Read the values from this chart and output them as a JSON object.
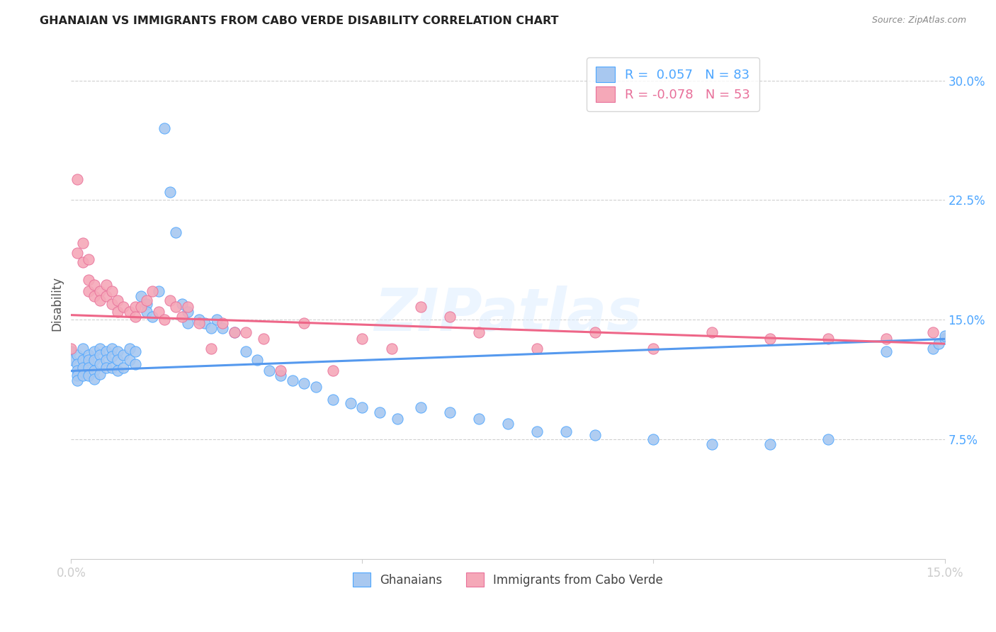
{
  "title": "GHANAIAN VS IMMIGRANTS FROM CABO VERDE DISABILITY CORRELATION CHART",
  "source": "Source: ZipAtlas.com",
  "legend_label_1": "Ghanaians",
  "legend_label_2": "Immigrants from Cabo Verde",
  "R1": 0.057,
  "N1": 83,
  "R2": -0.078,
  "N2": 53,
  "color_blue": "#a8c8f0",
  "color_pink": "#f5a8b8",
  "color_blue_text": "#4da6ff",
  "color_pink_text": "#e8709a",
  "line_blue": "#5599ee",
  "line_pink": "#ee6688",
  "watermark": "ZIPatlas",
  "xlim": [
    0.0,
    0.15
  ],
  "ylim": [
    0.0,
    0.32
  ],
  "blue_x": [
    0.0,
    0.0,
    0.001,
    0.001,
    0.001,
    0.001,
    0.001,
    0.002,
    0.002,
    0.002,
    0.002,
    0.003,
    0.003,
    0.003,
    0.003,
    0.004,
    0.004,
    0.004,
    0.004,
    0.005,
    0.005,
    0.005,
    0.005,
    0.006,
    0.006,
    0.006,
    0.007,
    0.007,
    0.007,
    0.008,
    0.008,
    0.008,
    0.009,
    0.009,
    0.01,
    0.01,
    0.011,
    0.011,
    0.012,
    0.013,
    0.013,
    0.014,
    0.015,
    0.016,
    0.017,
    0.018,
    0.019,
    0.02,
    0.02,
    0.022,
    0.023,
    0.024,
    0.025,
    0.026,
    0.028,
    0.03,
    0.032,
    0.034,
    0.036,
    0.038,
    0.04,
    0.042,
    0.045,
    0.048,
    0.05,
    0.053,
    0.056,
    0.06,
    0.065,
    0.07,
    0.075,
    0.08,
    0.085,
    0.09,
    0.1,
    0.11,
    0.12,
    0.13,
    0.14,
    0.148,
    0.149,
    0.15,
    0.15
  ],
  "blue_y": [
    0.13,
    0.125,
    0.128,
    0.122,
    0.118,
    0.115,
    0.112,
    0.132,
    0.125,
    0.12,
    0.115,
    0.128,
    0.125,
    0.12,
    0.115,
    0.13,
    0.125,
    0.118,
    0.113,
    0.132,
    0.128,
    0.122,
    0.116,
    0.13,
    0.125,
    0.12,
    0.132,
    0.127,
    0.12,
    0.13,
    0.125,
    0.118,
    0.128,
    0.12,
    0.132,
    0.125,
    0.13,
    0.122,
    0.165,
    0.16,
    0.155,
    0.152,
    0.168,
    0.27,
    0.23,
    0.205,
    0.16,
    0.155,
    0.148,
    0.15,
    0.148,
    0.145,
    0.15,
    0.145,
    0.142,
    0.13,
    0.125,
    0.118,
    0.115,
    0.112,
    0.11,
    0.108,
    0.1,
    0.098,
    0.095,
    0.092,
    0.088,
    0.095,
    0.092,
    0.088,
    0.085,
    0.08,
    0.08,
    0.078,
    0.075,
    0.072,
    0.072,
    0.075,
    0.13,
    0.132,
    0.135,
    0.138,
    0.14
  ],
  "pink_x": [
    0.0,
    0.001,
    0.001,
    0.002,
    0.002,
    0.003,
    0.003,
    0.003,
    0.004,
    0.004,
    0.005,
    0.005,
    0.006,
    0.006,
    0.007,
    0.007,
    0.008,
    0.008,
    0.009,
    0.01,
    0.011,
    0.011,
    0.012,
    0.013,
    0.014,
    0.015,
    0.016,
    0.017,
    0.018,
    0.019,
    0.02,
    0.022,
    0.024,
    0.026,
    0.028,
    0.03,
    0.033,
    0.036,
    0.04,
    0.045,
    0.05,
    0.055,
    0.06,
    0.065,
    0.07,
    0.08,
    0.09,
    0.1,
    0.11,
    0.12,
    0.13,
    0.14,
    0.148
  ],
  "pink_y": [
    0.132,
    0.238,
    0.192,
    0.198,
    0.186,
    0.188,
    0.175,
    0.168,
    0.172,
    0.165,
    0.168,
    0.162,
    0.172,
    0.165,
    0.168,
    0.16,
    0.162,
    0.155,
    0.158,
    0.155,
    0.158,
    0.152,
    0.158,
    0.162,
    0.168,
    0.155,
    0.15,
    0.162,
    0.158,
    0.152,
    0.158,
    0.148,
    0.132,
    0.148,
    0.142,
    0.142,
    0.138,
    0.118,
    0.148,
    0.118,
    0.138,
    0.132,
    0.158,
    0.152,
    0.142,
    0.132,
    0.142,
    0.132,
    0.142,
    0.138,
    0.138,
    0.138,
    0.142
  ],
  "blue_trend_x": [
    0.0,
    0.15
  ],
  "blue_trend_y": [
    0.118,
    0.138
  ],
  "pink_trend_x": [
    0.0,
    0.15
  ],
  "pink_trend_y": [
    0.153,
    0.135
  ]
}
